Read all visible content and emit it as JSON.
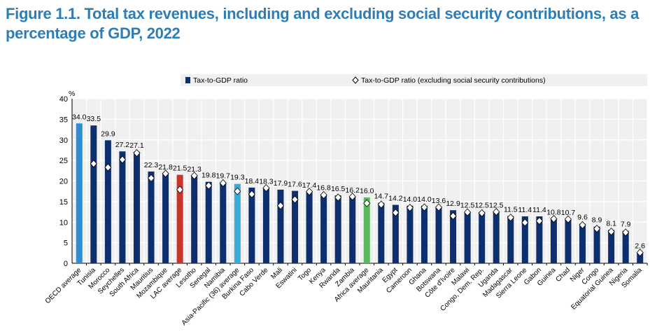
{
  "title": "Figure 1.1. Total tax revenues, including and excluding social security contributions, as a percentage of GDP, 2022",
  "chart_data": {
    "type": "bar",
    "title": "Figure 1.1. Total tax revenues, including and excluding social security contributions, as a percentage of GDP, 2022",
    "ylabel": "%",
    "ylim": [
      0,
      40
    ],
    "yticks": [
      0,
      5,
      10,
      15,
      20,
      25,
      30,
      35,
      40
    ],
    "grid": true,
    "legend_position": "top",
    "categories": [
      "OECD average",
      "Tunisia",
      "Morocco",
      "Seychelles",
      "South Africa",
      "Mauritius",
      "Mozambique",
      "LAC average",
      "Lesotho",
      "Senegal",
      "Namibia",
      "Asia-Pacific (36) average",
      "Burkina Faso",
      "Cabo Verde",
      "Mali",
      "Eswatini",
      "Togo",
      "Kenya",
      "Rwanda",
      "Zambia",
      "Africa average",
      "Mauritania",
      "Egypt",
      "Cameroon",
      "Ghana",
      "Botswana",
      "Côte d'Ivoire",
      "Malawi",
      "Congo, Dem. Rep.",
      "Uganda",
      "Madagascar",
      "Sierra Leone",
      "Gabon",
      "Guinea",
      "Chad",
      "Niger",
      "Congo",
      "Equatorial Guinea",
      "Nigeria",
      "Somalia"
    ],
    "series": [
      {
        "name": "Tax-to-GDP ratio",
        "type": "bar",
        "values": [
          34.0,
          33.5,
          29.9,
          27.2,
          27.1,
          22.3,
          21.8,
          21.5,
          21.3,
          19.8,
          19.7,
          19.3,
          18.4,
          18.3,
          17.9,
          17.6,
          17.4,
          16.8,
          16.5,
          16.2,
          16.0,
          14.7,
          14.2,
          14.0,
          14.0,
          13.6,
          12.9,
          12.5,
          12.5,
          12.5,
          11.5,
          11.4,
          11.4,
          10.8,
          10.7,
          9.6,
          8.9,
          8.1,
          7.9,
          2.6
        ]
      },
      {
        "name": "Tax-to-GDP ratio (excluding social security contributions)",
        "type": "marker",
        "values": [
          null,
          24.2,
          23.3,
          25.2,
          26.8,
          20.7,
          21.8,
          17.9,
          21.3,
          18.9,
          19.5,
          17.5,
          16.8,
          18.3,
          14.0,
          15.5,
          17.4,
          16.6,
          16.0,
          16.2,
          14.6,
          14.3,
          12.3,
          13.5,
          13.6,
          13.6,
          11.5,
          12.4,
          12.2,
          12.5,
          11.1,
          9.9,
          10.3,
          10.8,
          10.7,
          9.3,
          8.4,
          7.7,
          7.5,
          2.6
        ]
      }
    ],
    "colors": {
      "default": "#0d2f6e",
      "OECD average": "#2c8fd3",
      "LAC average": "#c9342b",
      "Asia-Pacific (36) average": "#3aaad6",
      "Africa average": "#5cb85c"
    }
  }
}
